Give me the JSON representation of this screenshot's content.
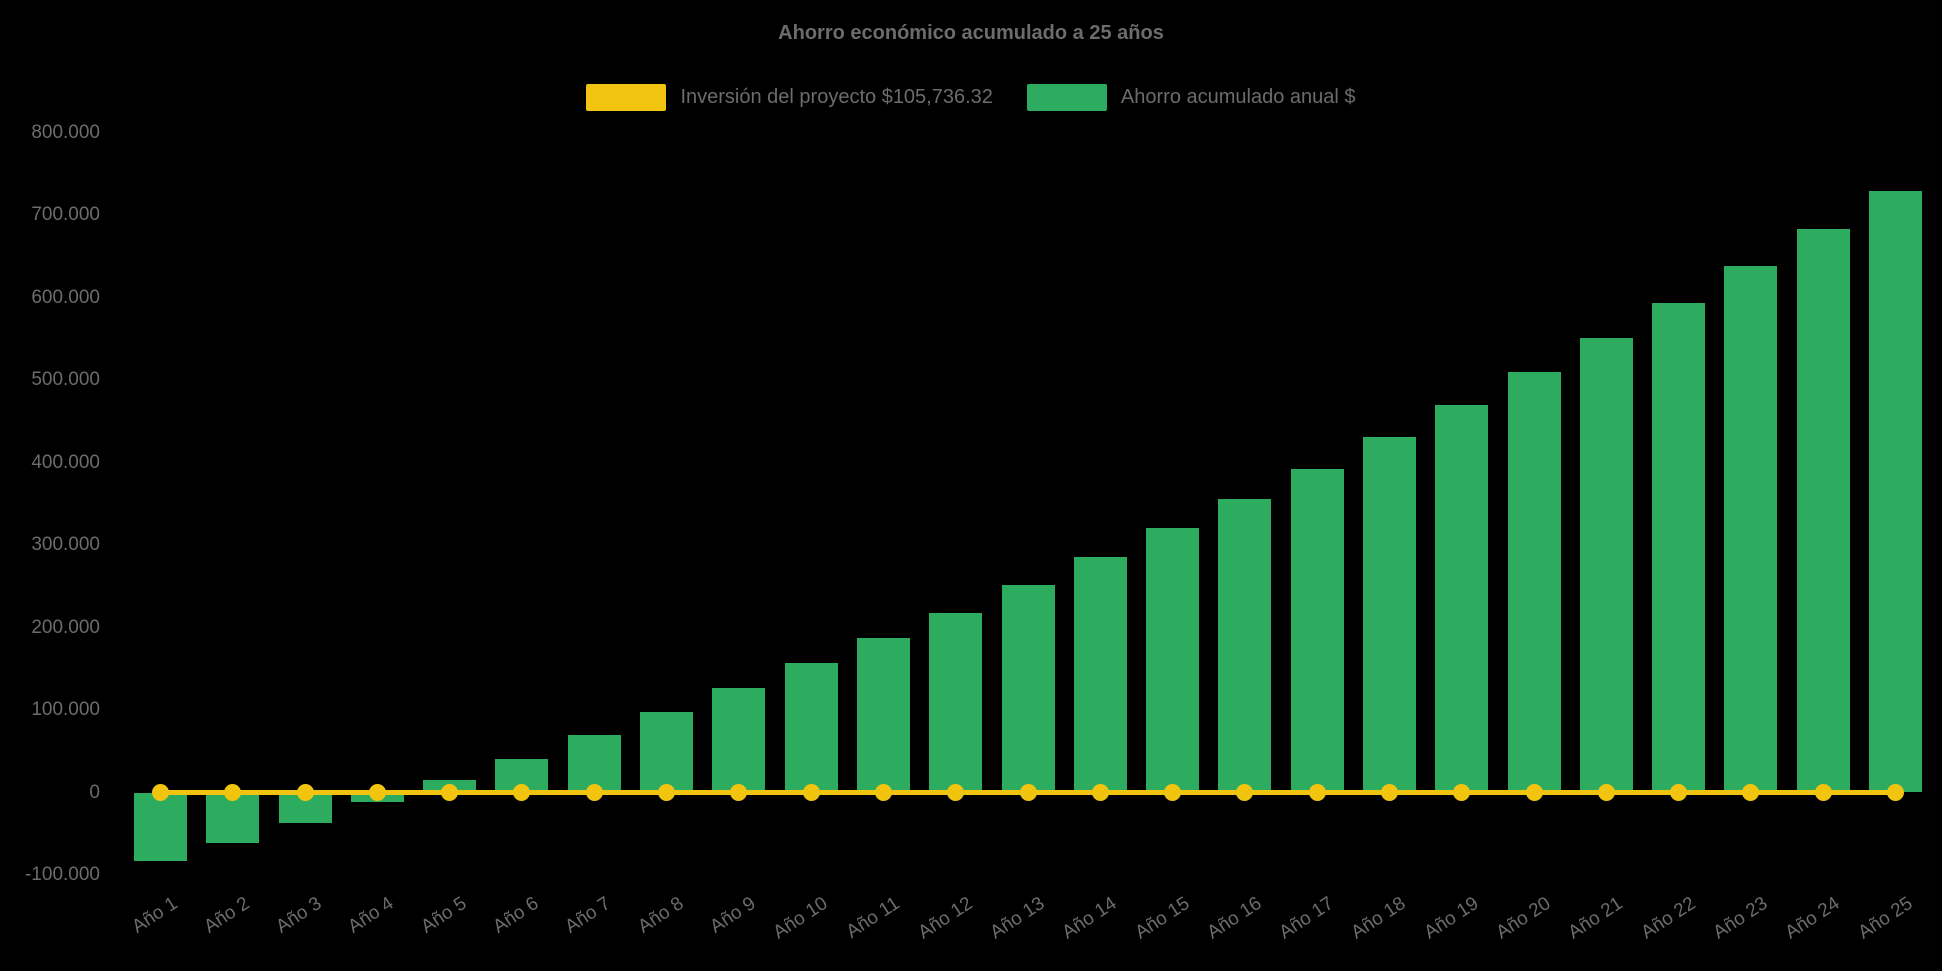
{
  "title": "Ahorro económico acumulado a 25 años",
  "legend": {
    "items": [
      {
        "id": "inversion",
        "label": "Inversión del proyecto $105,736.32",
        "color": "#F1C40F"
      },
      {
        "id": "ahorro",
        "label": "Ahorro acumulado anual $",
        "color": "#2DAC60"
      }
    ]
  },
  "colors": {
    "background": "#000000",
    "text": "#6C6C6C",
    "bar_green": "#2DAC60",
    "line_yellow": "#F1C40F"
  },
  "y_axis": {
    "tick_labels": [
      "800.000",
      "700.000",
      "600.000",
      "500.000",
      "400.000",
      "300.000",
      "200.000",
      "100.000",
      "0",
      "-100.000"
    ],
    "tick_values": [
      800000,
      700000,
      600000,
      500000,
      400000,
      300000,
      200000,
      100000,
      0,
      -100000
    ]
  },
  "x_axis": {
    "categories": [
      "Año 1",
      "Año 2",
      "Año 3",
      "Año 4",
      "Año 5",
      "Año 6",
      "Año 7",
      "Año 8",
      "Año 9",
      "Año 10",
      "Año 11",
      "Año 12",
      "Año 13",
      "Año 14",
      "Año 15",
      "Año 16",
      "Año 17",
      "Año 18",
      "Año 19",
      "Año 20",
      "Año 21",
      "Año 22",
      "Año 23",
      "Año 24",
      "Año 25"
    ]
  },
  "chart_data": {
    "type": "bar",
    "title": "Ahorro económico acumulado a 25 años",
    "categories": [
      "Año 1",
      "Año 2",
      "Año 3",
      "Año 4",
      "Año 5",
      "Año 6",
      "Año 7",
      "Año 8",
      "Año 9",
      "Año 10",
      "Año 11",
      "Año 12",
      "Año 13",
      "Año 14",
      "Año 15",
      "Año 16",
      "Año 17",
      "Año 18",
      "Año 19",
      "Año 20",
      "Año 21",
      "Año 22",
      "Año 23",
      "Año 24",
      "Año 25"
    ],
    "series": [
      {
        "name": "Inversión del proyecto $105,736.32",
        "type": "line",
        "color": "#F1C40F",
        "marker": "circle",
        "values": [
          0,
          0,
          0,
          0,
          0,
          0,
          0,
          0,
          0,
          0,
          0,
          0,
          0,
          0,
          0,
          0,
          0,
          0,
          0,
          0,
          0,
          0,
          0,
          0,
          0
        ]
      },
      {
        "name": "Ahorro acumulado anual $",
        "type": "bar",
        "color": "#2DAC60",
        "values": [
          -83000,
          -61000,
          -37000,
          -11000,
          15000,
          41000,
          70000,
          97000,
          127000,
          157000,
          187000,
          218000,
          251000,
          286000,
          321000,
          356000,
          392000,
          431000,
          470000,
          510000,
          551000,
          593000,
          638000,
          683000,
          729000
        ]
      }
    ],
    "ylim": [
      -100000,
      800000
    ],
    "ytick_step": 100000,
    "grid": false,
    "legend_position": "top",
    "background": "black"
  }
}
